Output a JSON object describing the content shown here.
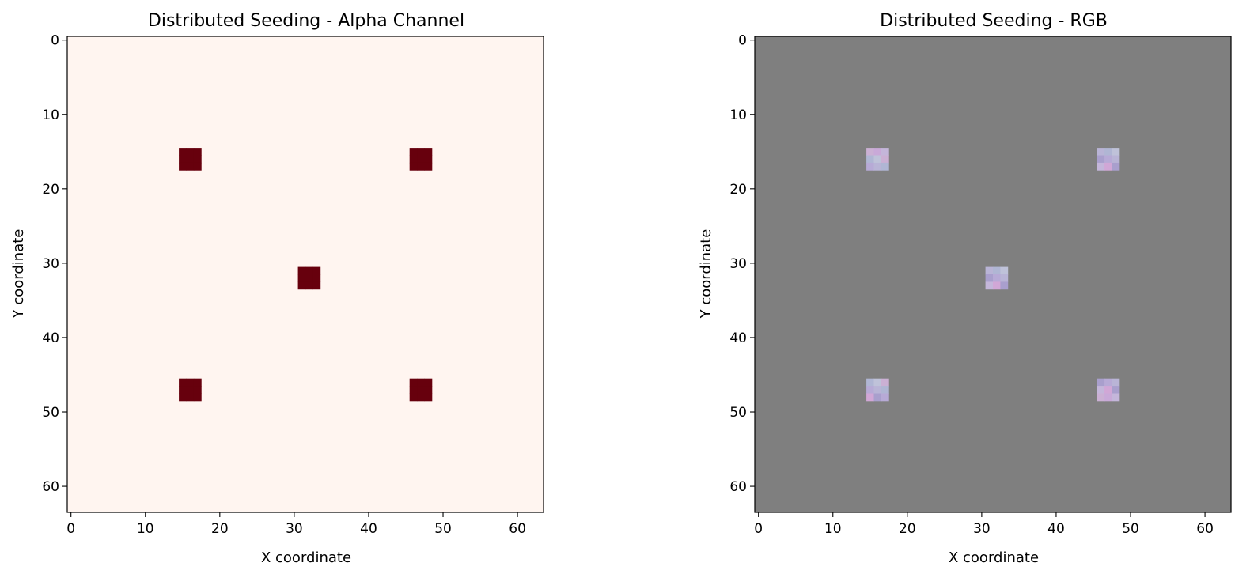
{
  "chart_data": [
    {
      "type": "heatmap",
      "title": "Distributed Seeding - Alpha Channel",
      "xlabel": "X coordinate",
      "ylabel": "Y coordinate",
      "xlim": [
        -0.5,
        63.5
      ],
      "ylim": [
        63.5,
        -0.5
      ],
      "xticks": [
        0,
        10,
        20,
        30,
        40,
        50,
        60
      ],
      "yticks": [
        0,
        10,
        20,
        30,
        40,
        50,
        60
      ],
      "grid_size": [
        64,
        64
      ],
      "background_value": 0,
      "background_color": "#fff5f0",
      "seed_value": 1,
      "seed_color": "#67000d",
      "colormap": "Reds",
      "seeds": [
        {
          "x": [
            15,
            17
          ],
          "y": [
            15,
            17
          ]
        },
        {
          "x": [
            46,
            48
          ],
          "y": [
            15,
            17
          ]
        },
        {
          "x": [
            31,
            33
          ],
          "y": [
            31,
            33
          ]
        },
        {
          "x": [
            15,
            17
          ],
          "y": [
            46,
            48
          ]
        },
        {
          "x": [
            46,
            48
          ],
          "y": [
            46,
            48
          ]
        }
      ]
    },
    {
      "type": "heatmap",
      "title": "Distributed Seeding - RGB",
      "xlabel": "X coordinate",
      "ylabel": "Y coordinate",
      "xlim": [
        -0.5,
        63.5
      ],
      "ylim": [
        63.5,
        -0.5
      ],
      "xticks": [
        0,
        10,
        20,
        30,
        40,
        50,
        60
      ],
      "yticks": [
        0,
        10,
        20,
        30,
        40,
        50,
        60
      ],
      "grid_size": [
        64,
        64
      ],
      "background_color": "#7f7f7f",
      "seed_palette": [
        "#b9b4d6",
        "#c9a9d8",
        "#b7aad6",
        "#cbb0d4",
        "#a99fcd",
        "#bfc2d9",
        "#d1a7d6",
        "#b0b6d4",
        "#c4b6da"
      ],
      "seeds": [
        {
          "x": [
            15,
            17
          ],
          "y": [
            15,
            17
          ]
        },
        {
          "x": [
            46,
            48
          ],
          "y": [
            15,
            17
          ]
        },
        {
          "x": [
            31,
            33
          ],
          "y": [
            31,
            33
          ]
        },
        {
          "x": [
            15,
            17
          ],
          "y": [
            46,
            48
          ]
        },
        {
          "x": [
            46,
            48
          ],
          "y": [
            46,
            48
          ]
        }
      ]
    }
  ]
}
